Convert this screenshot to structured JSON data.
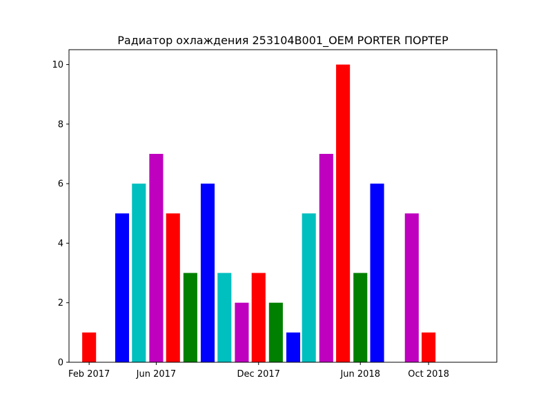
{
  "chart_data": {
    "type": "bar",
    "title": "Радиатор охлаждения 253104B001_OEM  PORTER ПОРТЕР",
    "xlabel": "",
    "ylabel": "",
    "grid": false,
    "ylim": [
      0,
      10.5
    ],
    "yticks": [
      0,
      2,
      4,
      6,
      8,
      10
    ],
    "xlim": [
      "2016-12-27",
      "2019-01-31"
    ],
    "xticks": [
      {
        "date": "2017-02-01",
        "label": "Feb 2017"
      },
      {
        "date": "2017-06-01",
        "label": "Jun 2017"
      },
      {
        "date": "2017-12-01",
        "label": "Dec 2017"
      },
      {
        "date": "2018-06-01",
        "label": "Jun 2018"
      },
      {
        "date": "2018-10-01",
        "label": "Oct 2018"
      }
    ],
    "bars": [
      {
        "date": "2017-02-01",
        "value": 1,
        "color": "#ff0000"
      },
      {
        "date": "2017-04-01",
        "value": 5,
        "color": "#0000ff"
      },
      {
        "date": "2017-05-01",
        "value": 6,
        "color": "#00bfbf"
      },
      {
        "date": "2017-06-01",
        "value": 7,
        "color": "#bf00bf"
      },
      {
        "date": "2017-07-01",
        "value": 5,
        "color": "#ff0000"
      },
      {
        "date": "2017-08-01",
        "value": 3,
        "color": "#008000"
      },
      {
        "date": "2017-09-01",
        "value": 6,
        "color": "#0000ff"
      },
      {
        "date": "2017-10-01",
        "value": 3,
        "color": "#00bfbf"
      },
      {
        "date": "2017-11-01",
        "value": 2,
        "color": "#bf00bf"
      },
      {
        "date": "2017-12-01",
        "value": 3,
        "color": "#ff0000"
      },
      {
        "date": "2018-01-01",
        "value": 2,
        "color": "#008000"
      },
      {
        "date": "2018-02-01",
        "value": 1,
        "color": "#0000ff"
      },
      {
        "date": "2018-03-01",
        "value": 5,
        "color": "#00bfbf"
      },
      {
        "date": "2018-04-01",
        "value": 7,
        "color": "#bf00bf"
      },
      {
        "date": "2018-05-01",
        "value": 10,
        "color": "#ff0000"
      },
      {
        "date": "2018-06-01",
        "value": 3,
        "color": "#008000"
      },
      {
        "date": "2018-07-01",
        "value": 6,
        "color": "#0000ff"
      },
      {
        "date": "2018-09-01",
        "value": 5,
        "color": "#bf00bf"
      },
      {
        "date": "2018-10-01",
        "value": 1,
        "color": "#ff0000"
      }
    ]
  }
}
